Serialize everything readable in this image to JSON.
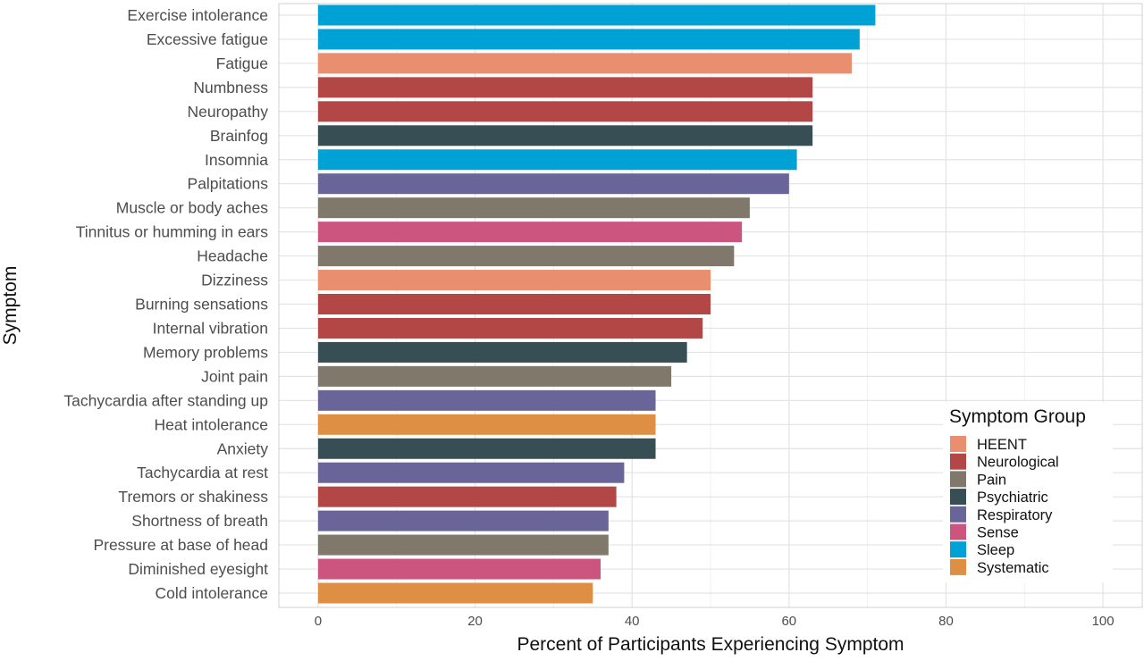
{
  "chart_data": {
    "type": "bar",
    "orientation": "horizontal",
    "xlabel": "Percent of Participants Experiencing Symptom",
    "ylabel": "Symptom",
    "xlim": [
      -5,
      105
    ],
    "xticks": [
      0,
      20,
      40,
      60,
      80,
      100
    ],
    "grid": true,
    "legend": {
      "title": "Symptom Group",
      "placement": "bottom-right",
      "entries": [
        {
          "name": "HEENT",
          "color": "#E98F6F"
        },
        {
          "name": "Neurological",
          "color": "#B24745"
        },
        {
          "name": "Pain",
          "color": "#80796B"
        },
        {
          "name": "Psychiatric",
          "color": "#374E55"
        },
        {
          "name": "Respiratory",
          "color": "#6A6599"
        },
        {
          "name": "Sense",
          "color": "#CC5580"
        },
        {
          "name": "Sleep",
          "color": "#00A1D5"
        },
        {
          "name": "Systematic",
          "color": "#DF8F44"
        }
      ]
    },
    "bars": [
      {
        "symptom": "Exercise intolerance",
        "value": 71,
        "group": "Sleep"
      },
      {
        "symptom": "Excessive fatigue",
        "value": 69,
        "group": "Sleep"
      },
      {
        "symptom": "Fatigue",
        "value": 68,
        "group": "HEENT"
      },
      {
        "symptom": "Numbness",
        "value": 63,
        "group": "Neurological"
      },
      {
        "symptom": "Neuropathy",
        "value": 63,
        "group": "Neurological"
      },
      {
        "symptom": "Brainfog",
        "value": 63,
        "group": "Psychiatric"
      },
      {
        "symptom": "Insomnia",
        "value": 61,
        "group": "Sleep"
      },
      {
        "symptom": "Palpitations",
        "value": 60,
        "group": "Respiratory"
      },
      {
        "symptom": "Muscle or body aches",
        "value": 55,
        "group": "Pain"
      },
      {
        "symptom": "Tinnitus or humming in ears",
        "value": 54,
        "group": "Sense"
      },
      {
        "symptom": "Headache",
        "value": 53,
        "group": "Pain"
      },
      {
        "symptom": "Dizziness",
        "value": 50,
        "group": "HEENT"
      },
      {
        "symptom": "Burning sensations",
        "value": 50,
        "group": "Neurological"
      },
      {
        "symptom": "Internal vibration",
        "value": 49,
        "group": "Neurological"
      },
      {
        "symptom": "Memory problems",
        "value": 47,
        "group": "Psychiatric"
      },
      {
        "symptom": "Joint pain",
        "value": 45,
        "group": "Pain"
      },
      {
        "symptom": "Tachycardia after standing up",
        "value": 43,
        "group": "Respiratory"
      },
      {
        "symptom": "Heat intolerance",
        "value": 43,
        "group": "Systematic"
      },
      {
        "symptom": "Anxiety",
        "value": 43,
        "group": "Psychiatric"
      },
      {
        "symptom": "Tachycardia at rest",
        "value": 39,
        "group": "Respiratory"
      },
      {
        "symptom": "Tremors or shakiness",
        "value": 38,
        "group": "Neurological"
      },
      {
        "symptom": "Shortness of breath",
        "value": 37,
        "group": "Respiratory"
      },
      {
        "symptom": "Pressure at base of head",
        "value": 37,
        "group": "Pain"
      },
      {
        "symptom": "Diminished eyesight",
        "value": 36,
        "group": "Sense"
      },
      {
        "symptom": "Cold intolerance",
        "value": 35,
        "group": "Systematic"
      }
    ]
  }
}
